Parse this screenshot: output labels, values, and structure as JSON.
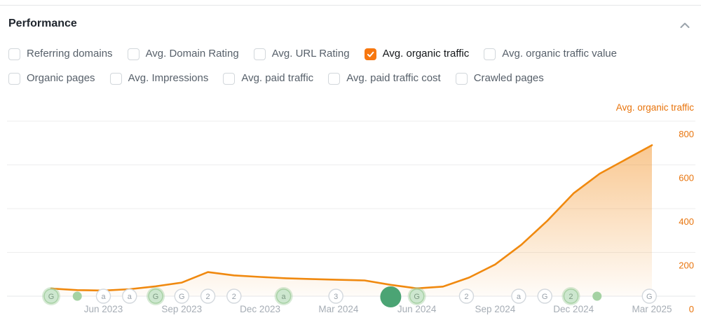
{
  "header": {
    "title": "Performance"
  },
  "metrics": {
    "rows": [
      {
        "items": [
          {
            "label": "Referring domains",
            "checked": false
          },
          {
            "label": "Avg. Domain Rating",
            "checked": false
          },
          {
            "label": "Avg. URL Rating",
            "checked": false
          },
          {
            "label": "Avg. organic traffic",
            "checked": true
          },
          {
            "label": "Avg. organic traffic value",
            "checked": false
          }
        ]
      },
      {
        "items": [
          {
            "label": "Organic pages",
            "checked": false
          },
          {
            "label": "Avg. Impressions",
            "checked": false
          },
          {
            "label": "Avg. paid traffic",
            "checked": false
          },
          {
            "label": "Avg. paid traffic cost",
            "checked": false
          },
          {
            "label": "Crawled pages",
            "checked": false
          }
        ]
      }
    ]
  },
  "chart_data": {
    "type": "area",
    "legend": "Avg. organic traffic",
    "legend_position": "top-right",
    "axis_side": "right",
    "grid": "horizontal",
    "ylim": [
      0,
      800
    ],
    "yticks": [
      0,
      200,
      400,
      600,
      800
    ],
    "x": [
      "Apr 2023",
      "May 2023",
      "Jun 2023",
      "Jul 2023",
      "Aug 2023",
      "Sep 2023",
      "Oct 2023",
      "Nov 2023",
      "Dec 2023",
      "Jan 2024",
      "Feb 2024",
      "Mar 2024",
      "Apr 2024",
      "May 2024",
      "Jun 2024",
      "Jul 2024",
      "Aug 2024",
      "Sep 2024",
      "Oct 2024",
      "Nov 2024",
      "Dec 2024",
      "Jan 2025",
      "Feb 2025",
      "Mar 2025"
    ],
    "series": [
      {
        "name": "Avg. organic traffic",
        "values": [
          35,
          28,
          26,
          32,
          45,
          62,
          110,
          95,
          88,
          82,
          78,
          75,
          72,
          52,
          36,
          44,
          85,
          145,
          235,
          345,
          470,
          560,
          625,
          690
        ]
      }
    ],
    "xticks": [
      {
        "month_index": 2,
        "label": "Jun 2023"
      },
      {
        "month_index": 5,
        "label": "Sep 2023"
      },
      {
        "month_index": 8,
        "label": "Dec 2023"
      },
      {
        "month_index": 11,
        "label": "Mar 2024"
      },
      {
        "month_index": 14,
        "label": "Jun 2024"
      },
      {
        "month_index": 17,
        "label": "Sep 2024"
      },
      {
        "month_index": 20,
        "label": "Dec 2024"
      },
      {
        "month_index": 23,
        "label": "Mar 2025"
      }
    ],
    "event_markers": [
      {
        "month_index": 0,
        "label": "G",
        "variant": "green"
      },
      {
        "month_index": 1,
        "label": "",
        "variant": "dot"
      },
      {
        "month_index": 2,
        "label": "a",
        "variant": "plain"
      },
      {
        "month_index": 3,
        "label": "a",
        "variant": "plain"
      },
      {
        "month_index": 4,
        "label": "G",
        "variant": "green"
      },
      {
        "month_index": 5,
        "label": "G",
        "variant": "plain"
      },
      {
        "month_index": 6,
        "label": "2",
        "variant": "plain"
      },
      {
        "month_index": 7,
        "label": "2",
        "variant": "plain"
      },
      {
        "month_index": 8.9,
        "label": "a",
        "variant": "green"
      },
      {
        "month_index": 10.9,
        "label": "3",
        "variant": "plain"
      },
      {
        "month_index": 13,
        "label": "",
        "variant": "big-dot"
      },
      {
        "month_index": 14,
        "label": "G",
        "variant": "green"
      },
      {
        "month_index": 15.9,
        "label": "2",
        "variant": "plain"
      },
      {
        "month_index": 17.9,
        "label": "a",
        "variant": "plain"
      },
      {
        "month_index": 18.9,
        "label": "G",
        "variant": "plain"
      },
      {
        "month_index": 19.9,
        "label": "2",
        "variant": "green"
      },
      {
        "month_index": 20.9,
        "label": "",
        "variant": "dot"
      },
      {
        "month_index": 22.9,
        "label": "G",
        "variant": "plain"
      }
    ],
    "colors": {
      "line": "#f0890f",
      "fill": "#f29124",
      "axis_label": "#e8740c",
      "legend_text": "#e8740c",
      "tick_label": "#a6adb5",
      "grid": "#ededee",
      "baseline": "#e4e7ea",
      "marker_plain_fill": "#ffffff",
      "marker_plain_border": "#d3d8dd",
      "marker_letter": "#98a1aa",
      "marker_green_fill": "#cde7cf",
      "marker_green_halo": "#a7d1a4",
      "marker_green_letter": "#7d9a84",
      "dot": "#a5d2a3",
      "big_dot": "#4ba474",
      "checkbox_checked": "#f7770f"
    }
  }
}
